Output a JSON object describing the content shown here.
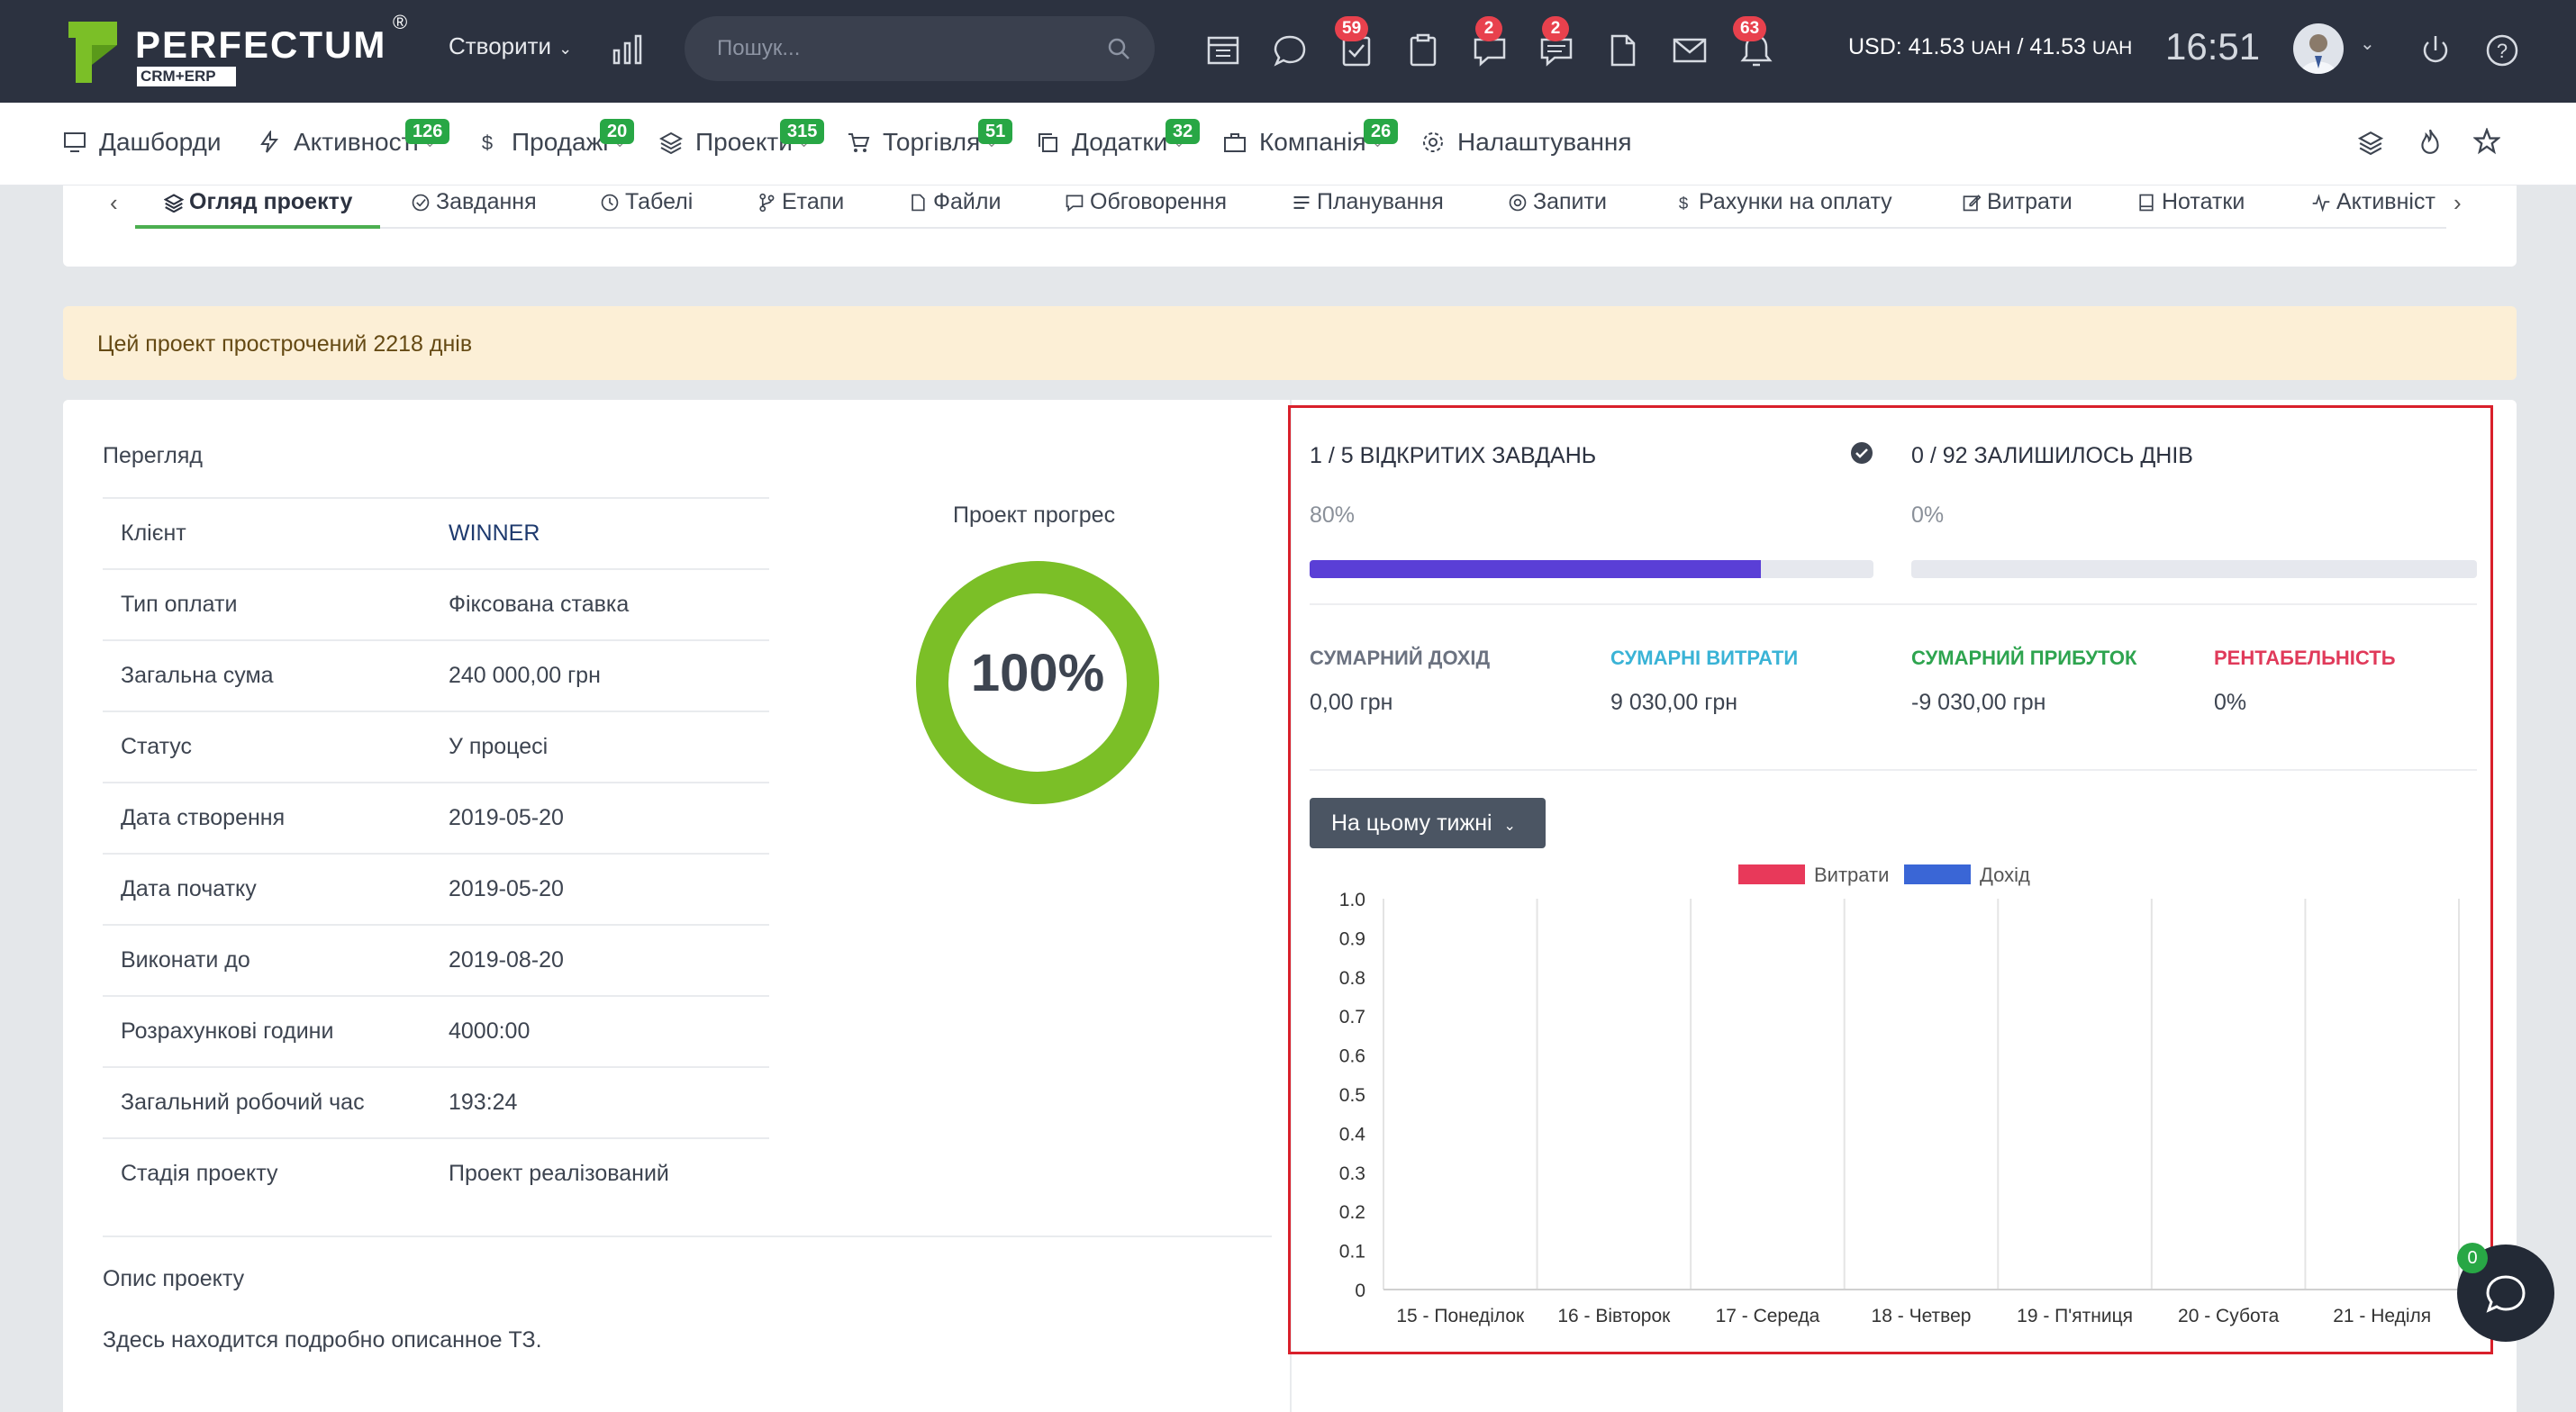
{
  "header": {
    "logo_text": "PERFECTUM",
    "logo_reg": "®",
    "logo_sub": "CRM+ERP",
    "create_label": "Створити",
    "search_placeholder": "Пошук...",
    "badges": {
      "tasks": "59",
      "chat": "2",
      "messages": "2",
      "notifications": "63"
    },
    "currency_prefix": "USD: 41.53",
    "currency_unit1": "UAH",
    "currency_mid": "/ 41.53",
    "currency_unit2": "UAH",
    "time": "16:51"
  },
  "main_nav": [
    {
      "label": "Дашборди",
      "icon": "monitor-icon"
    },
    {
      "label": "Активності",
      "icon": "bolt-icon",
      "badge": "126"
    },
    {
      "label": "Продажі",
      "icon": "dollar-icon",
      "badge": "20"
    },
    {
      "label": "Проекти",
      "icon": "layers-icon",
      "badge": "315"
    },
    {
      "label": "Торгівля",
      "icon": "cart-icon",
      "badge": "51"
    },
    {
      "label": "Додатки",
      "icon": "copy-icon",
      "badge": "32"
    },
    {
      "label": "Компанія",
      "icon": "briefcase-icon",
      "badge": "26"
    },
    {
      "label": "Налаштування",
      "icon": "gear-icon"
    }
  ],
  "project_tabs": [
    {
      "label": "Огляд проекту",
      "icon": "layers-icon",
      "active": true
    },
    {
      "label": "Завдання",
      "icon": "check-circle-icon"
    },
    {
      "label": "Табелі",
      "icon": "clock-icon"
    },
    {
      "label": "Етапи",
      "icon": "branch-icon"
    },
    {
      "label": "Файли",
      "icon": "file-icon"
    },
    {
      "label": "Обговорення",
      "icon": "comment-icon"
    },
    {
      "label": "Планування",
      "icon": "list-icon"
    },
    {
      "label": "Запити",
      "icon": "life-ring-icon"
    },
    {
      "label": "Рахунки на оплату",
      "icon": "dollar-icon"
    },
    {
      "label": "Витрати",
      "icon": "edit-icon"
    },
    {
      "label": "Нотатки",
      "icon": "note-icon"
    },
    {
      "label": "Активніст",
      "icon": "activity-icon"
    }
  ],
  "alert": {
    "text": "Цей проект прострочений 2218 днів"
  },
  "overview": {
    "title": "Перегляд",
    "rows": [
      {
        "label": "Клієнт",
        "value": "WINNER",
        "link": true
      },
      {
        "label": "Тип оплати",
        "value": "Фіксована ставка"
      },
      {
        "label": "Загальна сума",
        "value": "240 000,00 грн"
      },
      {
        "label": "Статус",
        "value": "У процесі"
      },
      {
        "label": "Дата створення",
        "value": "2019-05-20"
      },
      {
        "label": "Дата початку",
        "value": "2019-05-20"
      },
      {
        "label": "Виконати до",
        "value": "2019-08-20"
      },
      {
        "label": "Розрахункові години",
        "value": "4000:00"
      },
      {
        "label": "Загальний робочий час",
        "value": "193:24"
      },
      {
        "label": "Стадія проекту",
        "value": "Проект реалізований"
      }
    ],
    "progress_title": "Проект прогрес",
    "progress_label": "100%",
    "progress_value": 1.0,
    "progress_color": "#7bbf27",
    "description_title": "Опис проекту",
    "description_text": "Здесь находится подробно описанное ТЗ."
  },
  "stats": {
    "tasks_head": "1 / 5 ВІДКРИТИХ ЗАВДАНЬ",
    "tasks_pct": "80%",
    "tasks_fraction": 0.8,
    "days_head": "0 / 92 ЗАЛИШИЛОСЬ ДНІВ",
    "days_pct": "0%",
    "days_fraction": 0.0,
    "bar_color": "#5a3fd6"
  },
  "kpis": [
    {
      "label": "СУМАРНИЙ ДОХІД",
      "value": "0,00 грн",
      "color": "#6b7280"
    },
    {
      "label": "СУМАРНІ ВИТРАТИ",
      "value": "9 030,00 грн",
      "color": "#3ab3d6"
    },
    {
      "label": "СУМАРНИЙ ПРИБУТОК",
      "value": "-9 030,00 грн",
      "color": "#2ea44f"
    },
    {
      "label": "РЕНТАБЕЛЬНІСТЬ",
      "value": "0%",
      "color": "#e03a5a"
    }
  ],
  "period_button": "На цьому тижні",
  "chart_data": {
    "type": "bar",
    "categories": [
      "15 - Понеділок",
      "16 - Вівторок",
      "17 - Середа",
      "18 - Четвер",
      "19 - П'ятниця",
      "20 - Субота",
      "21 - Неділя"
    ],
    "series": [
      {
        "name": "Витрати",
        "color": "#e8395a",
        "values": [
          0,
          0,
          0,
          0,
          0,
          0,
          0
        ]
      },
      {
        "name": "Дохід",
        "color": "#3a66d6",
        "values": [
          0,
          0,
          0,
          0,
          0,
          0,
          0
        ]
      }
    ],
    "yticks": [
      "1.0",
      "0.9",
      "0.8",
      "0.7",
      "0.6",
      "0.5",
      "0.4",
      "0.3",
      "0.2",
      "0.1",
      "0"
    ],
    "ylim": [
      0,
      1
    ],
    "grid": true,
    "legend": "top-center"
  },
  "chat_badge": "0"
}
